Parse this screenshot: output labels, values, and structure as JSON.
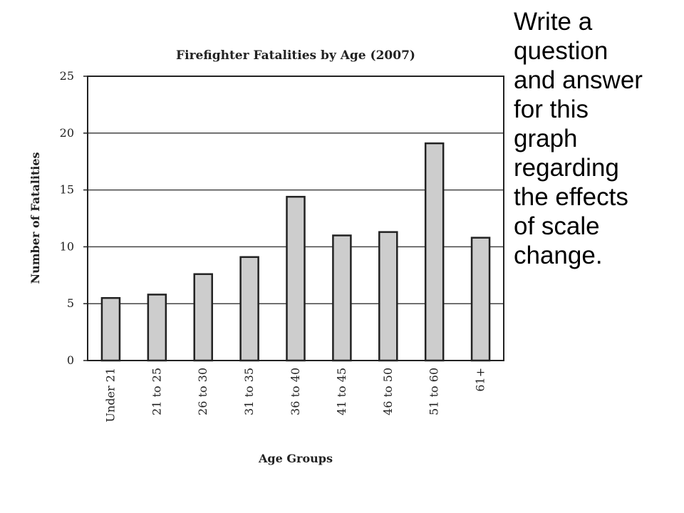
{
  "chart_data": {
    "type": "bar",
    "title": "Firefighter Fatalities by Age (2007)",
    "xlabel": "Age Groups",
    "ylabel": "Number of Fatalities",
    "categories": [
      "Under 21",
      "21 to 25",
      "26 to 30",
      "31 to 35",
      "36 to 40",
      "41 to 45",
      "46 to 50",
      "51 to 60",
      "61+"
    ],
    "values": [
      5.5,
      5.8,
      7.6,
      9.1,
      14.4,
      11.0,
      11.3,
      19.1,
      10.8
    ],
    "ylim": [
      0,
      25
    ],
    "yticks": [
      "0",
      "5",
      "10",
      "15",
      "20",
      "25"
    ],
    "grid": true,
    "bar_fill": "#cdcdcd",
    "bar_stroke": "#222222"
  },
  "side_note": "Write a\nquestion\nand answer\nfor this\ngraph\nregarding\nthe effects\nof scale\nchange."
}
